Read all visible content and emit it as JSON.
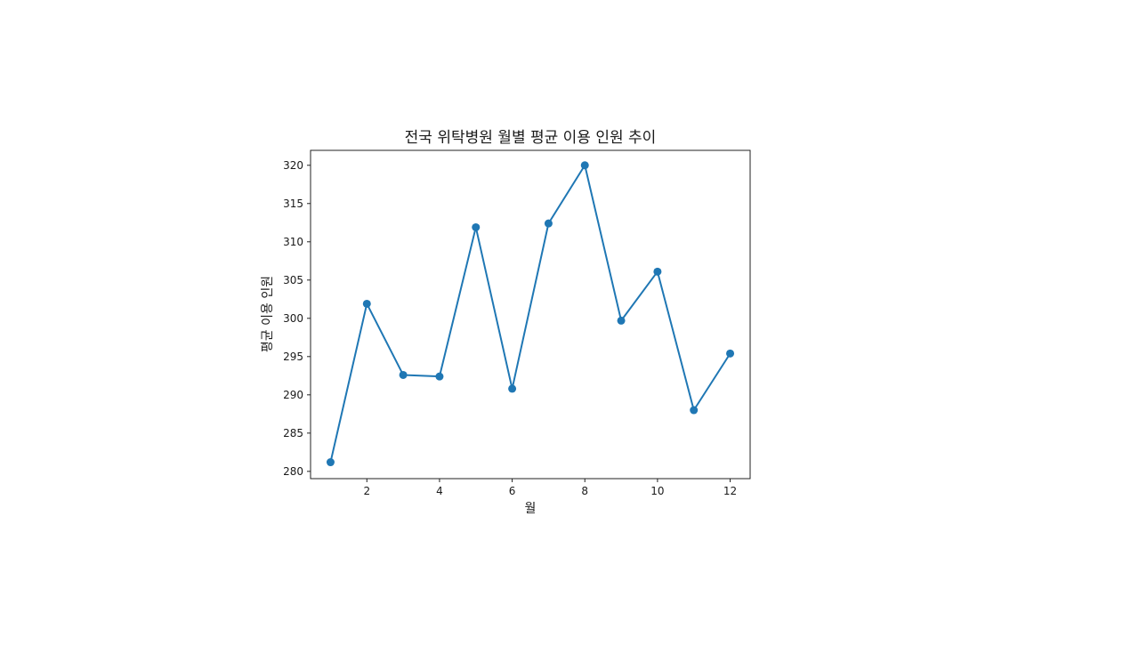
{
  "chart_data": {
    "type": "line",
    "title": "전국 위탁병원 월별 평균 이용 인원 추이",
    "xlabel": "월",
    "ylabel": "평균 이용 인원",
    "x": [
      1,
      2,
      3,
      4,
      5,
      6,
      7,
      8,
      9,
      10,
      11,
      12
    ],
    "series": [
      {
        "values": [
          281.2,
          301.9,
          292.6,
          292.4,
          311.9,
          290.8,
          312.4,
          320.0,
          299.7,
          306.1,
          288.0,
          295.4
        ],
        "color": "#1f77b4",
        "marker": "circle"
      }
    ],
    "xticks": [
      2,
      4,
      6,
      8,
      10,
      12
    ],
    "yticks": [
      280,
      285,
      290,
      295,
      300,
      305,
      310,
      315,
      320
    ],
    "xlim": [
      0.45,
      12.55
    ],
    "ylim": [
      279.05,
      321.95
    ],
    "grid": false,
    "legend": false
  }
}
